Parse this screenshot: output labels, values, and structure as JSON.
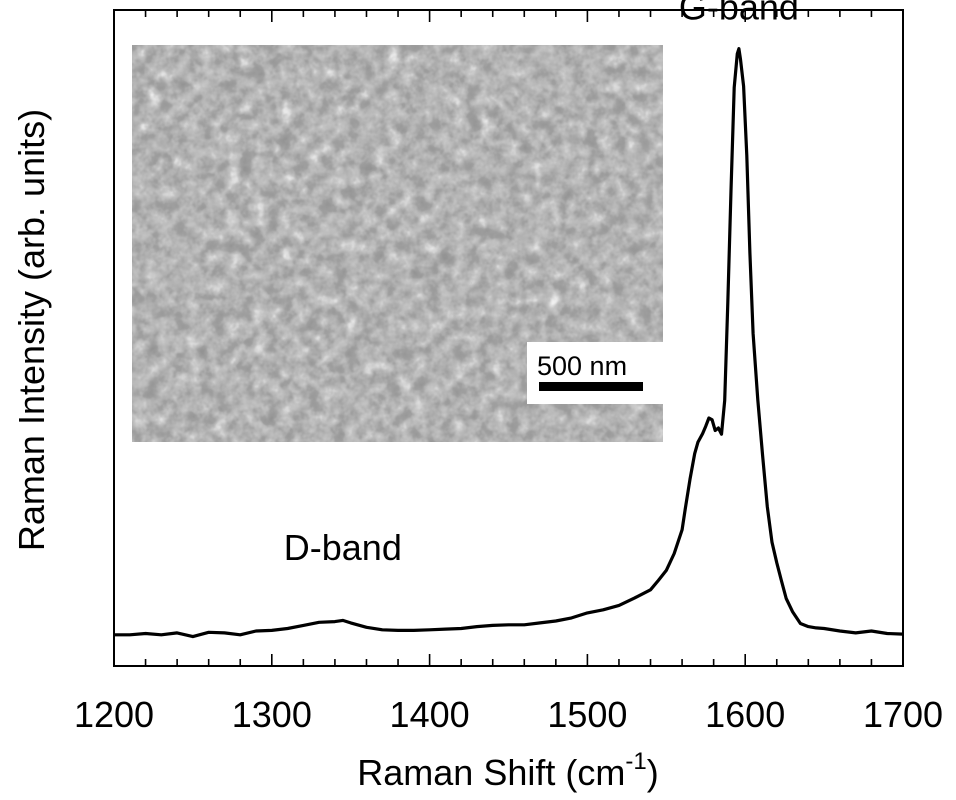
{
  "chart_data": {
    "type": "line",
    "xlabel": "Raman Shift (cm",
    "xlabel_sup": "-1",
    "xlabel_end": ")",
    "ylabel": "Raman Intensity (arb. units)",
    "xlim": [
      1200,
      1700
    ],
    "ylim": [
      -0.05,
      1.0
    ],
    "x_ticks": [
      1200,
      1300,
      1400,
      1500,
      1600,
      1700
    ],
    "y_tick_labels": "none",
    "grid": false,
    "series": [
      {
        "color": "#000000",
        "x": [
          1200,
          1210,
          1220,
          1230,
          1240,
          1250,
          1260,
          1270,
          1280,
          1290,
          1300,
          1310,
          1320,
          1330,
          1340,
          1345,
          1350,
          1360,
          1370,
          1380,
          1390,
          1400,
          1410,
          1420,
          1430,
          1440,
          1450,
          1460,
          1470,
          1480,
          1490,
          1500,
          1510,
          1520,
          1530,
          1540,
          1545,
          1550,
          1555,
          1560,
          1562,
          1565,
          1568,
          1570,
          1573,
          1575,
          1577,
          1579,
          1581,
          1583,
          1585,
          1587,
          1589,
          1591,
          1593,
          1595,
          1596,
          1597,
          1599,
          1601,
          1603,
          1605,
          1608,
          1611,
          1614,
          1617,
          1620,
          1623,
          1626,
          1630,
          1635,
          1640,
          1645,
          1650,
          1660,
          1670,
          1680,
          1690,
          1700
        ],
        "y": [
          0.0,
          0.0,
          0.002,
          0.0,
          0.003,
          -0.003,
          0.004,
          0.003,
          0.0,
          0.006,
          0.007,
          0.01,
          0.015,
          0.02,
          0.021,
          0.023,
          0.019,
          0.012,
          0.008,
          0.007,
          0.007,
          0.008,
          0.009,
          0.01,
          0.013,
          0.015,
          0.016,
          0.016,
          0.019,
          0.022,
          0.027,
          0.035,
          0.04,
          0.047,
          0.059,
          0.072,
          0.087,
          0.103,
          0.13,
          0.168,
          0.201,
          0.249,
          0.29,
          0.308,
          0.322,
          0.334,
          0.347,
          0.344,
          0.327,
          0.331,
          0.321,
          0.375,
          0.531,
          0.711,
          0.876,
          0.93,
          0.938,
          0.921,
          0.878,
          0.767,
          0.611,
          0.482,
          0.376,
          0.287,
          0.205,
          0.148,
          0.115,
          0.086,
          0.058,
          0.037,
          0.018,
          0.013,
          0.011,
          0.01,
          0.006,
          0.003,
          0.006,
          0.002,
          0.001
        ]
      }
    ],
    "annotations": [
      {
        "text": "G-band",
        "x": 1596,
        "y": 0.985
      },
      {
        "text": "D-band",
        "x": 1345,
        "y": 0.12
      }
    ],
    "inset": {
      "type": "micrograph",
      "scale_bar_label": "500 nm"
    }
  }
}
